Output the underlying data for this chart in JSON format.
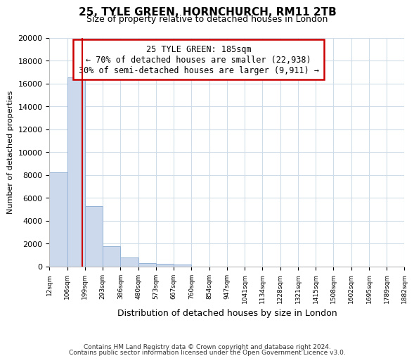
{
  "title": "25, TYLE GREEN, HORNCHURCH, RM11 2TB",
  "subtitle": "Size of property relative to detached houses in London",
  "xlabel": "Distribution of detached houses by size in London",
  "ylabel": "Number of detached properties",
  "bar_heights": [
    8200,
    16500,
    5300,
    1800,
    800,
    300,
    250,
    150,
    0,
    0,
    0,
    0,
    0,
    0,
    0,
    0,
    0,
    0,
    0,
    0
  ],
  "categories": [
    "12sqm",
    "106sqm",
    "199sqm",
    "293sqm",
    "386sqm",
    "480sqm",
    "573sqm",
    "667sqm",
    "760sqm",
    "854sqm",
    "947sqm",
    "1041sqm",
    "1134sqm",
    "1228sqm",
    "1321sqm",
    "1415sqm",
    "1508sqm",
    "1602sqm",
    "1695sqm",
    "1789sqm",
    "1882sqm"
  ],
  "bar_color": "#ccd9ec",
  "bar_edge_color": "#95b3d7",
  "vline_color": "#cc0000",
  "ylim": [
    0,
    20000
  ],
  "yticks": [
    0,
    2000,
    4000,
    6000,
    8000,
    10000,
    12000,
    14000,
    16000,
    18000,
    20000
  ],
  "annotation_title": "25 TYLE GREEN: 185sqm",
  "annotation_line1": "← 70% of detached houses are smaller (22,938)",
  "annotation_line2": "30% of semi-detached houses are larger (9,911) →",
  "annotation_box_color": "#ffffff",
  "annotation_box_edge": "#cc0000",
  "footnote1": "Contains HM Land Registry data © Crown copyright and database right 2024.",
  "footnote2": "Contains public sector information licensed under the Open Government Licence v3.0.",
  "background_color": "#ffffff",
  "grid_color": "#d0dce8",
  "property_sqm": 185,
  "bin_edges": [
    12,
    106,
    199,
    293,
    386,
    480,
    573,
    667,
    760,
    854,
    947,
    1041,
    1134,
    1228,
    1321,
    1415,
    1508,
    1602,
    1695,
    1789,
    1882
  ]
}
